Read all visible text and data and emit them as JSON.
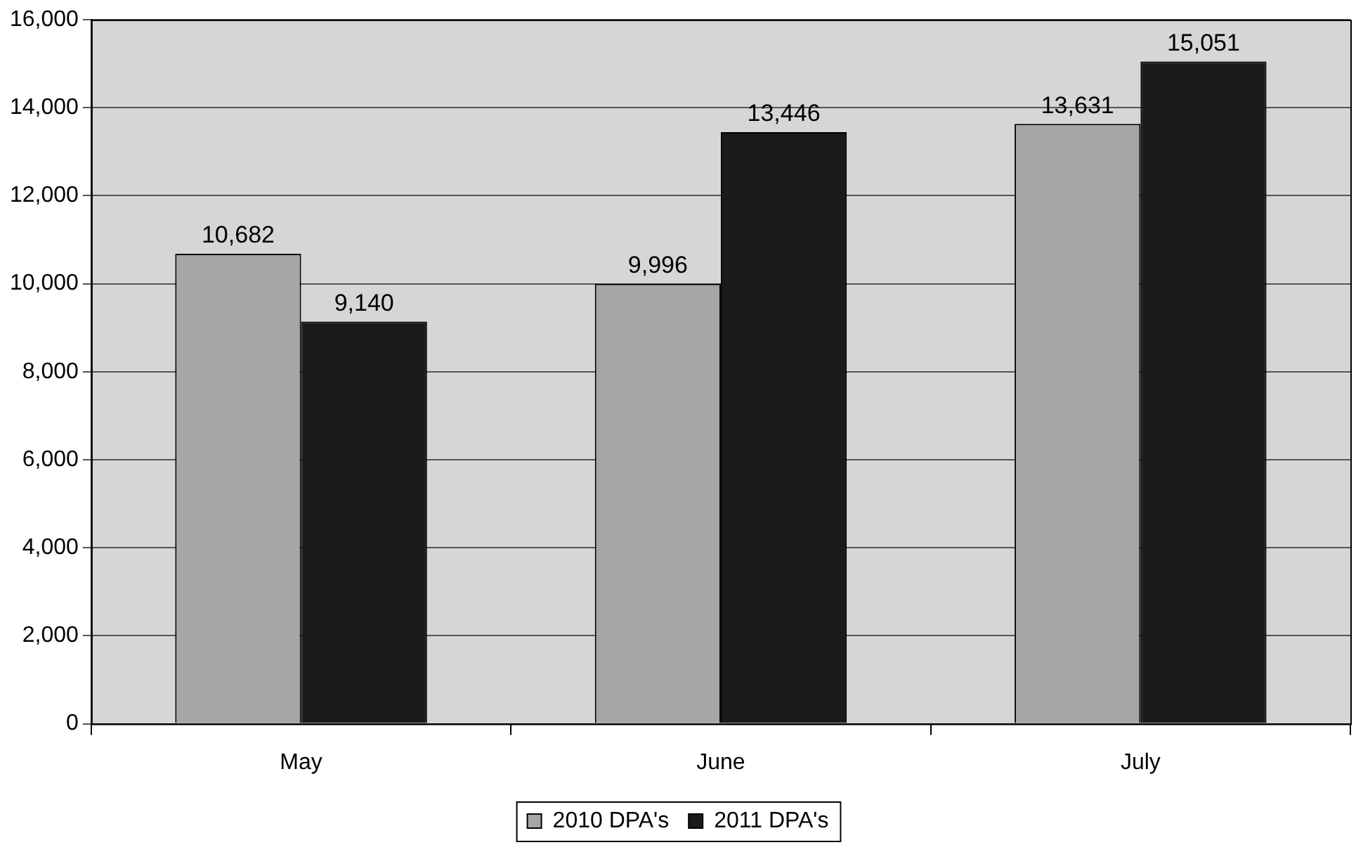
{
  "chart_data": {
    "type": "bar",
    "categories": [
      "May",
      "June",
      "July"
    ],
    "series": [
      {
        "name": "2010 DPA's",
        "color": "#a6a6a6",
        "values": [
          10682,
          9996,
          13631
        ],
        "value_labels": [
          "10,682",
          "9,996",
          "13,631"
        ]
      },
      {
        "name": "2011 DPA's",
        "color": "#1a1a1a",
        "values": [
          9140,
          13446,
          15051
        ],
        "value_labels": [
          "9,140",
          "13,446",
          "15,051"
        ]
      }
    ],
    "ylim": [
      0,
      16000
    ],
    "yticks": [
      0,
      {
        "value": 2000,
        "label": "2,000"
      },
      {
        "value": 4000,
        "label": "4,000"
      },
      {
        "value": 6000,
        "label": "6,000"
      },
      {
        "value": 8000,
        "label": "8,000"
      },
      {
        "value": 10000,
        "label": "10,000"
      },
      {
        "value": 12000,
        "label": "12,000"
      },
      {
        "value": 14000,
        "label": "14,000"
      },
      {
        "value": 16000,
        "label": "16,000"
      }
    ],
    "grid": "y",
    "legend": "bottom"
  }
}
